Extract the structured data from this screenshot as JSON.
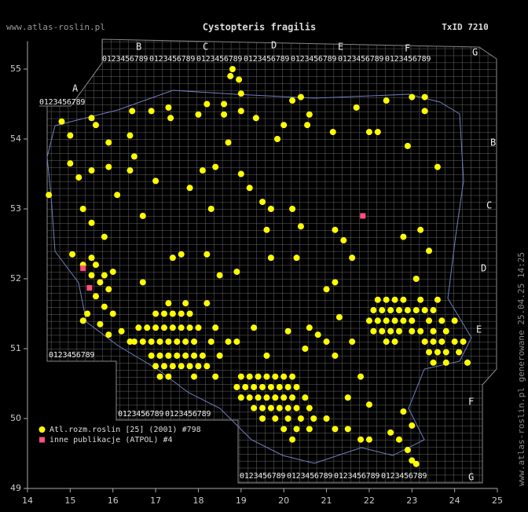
{
  "header": {
    "site": "www.atlas-roslin.pl",
    "title": "Cystopteris fragilis",
    "taxon": "TxID 7210"
  },
  "footer": "www.atlas-roslin.pl generowane 25.04.25 14:25",
  "atpol": {
    "top": [
      "A",
      "B",
      "C",
      "D",
      "E",
      "F",
      "G"
    ],
    "right": [
      "B",
      "C",
      "D",
      "E",
      "F",
      "G"
    ],
    "digits": "0123456789"
  },
  "chart_data": {
    "type": "scatter",
    "xlim": [
      14,
      25
    ],
    "ylim": [
      49,
      55.4
    ],
    "xticks": [
      14,
      15,
      16,
      17,
      18,
      19,
      20,
      21,
      22,
      23,
      24,
      25
    ],
    "yticks": [
      49,
      50,
      51,
      52,
      53,
      54,
      55
    ],
    "series": [
      {
        "name": "Atl.rozm.roslin [25] (2001) #798",
        "color": "#ffff00",
        "marker": "circle",
        "x": [
          14.8,
          15.5,
          15.6,
          15.0,
          15.9,
          16.4,
          16.45,
          16.9,
          17.3,
          17.35,
          18.0,
          18.2,
          18.6,
          18.6,
          18.75,
          18.8,
          18.95,
          19.0,
          19.0,
          19.35,
          20.2,
          20.4,
          20.6,
          20.55,
          20.0,
          19.85,
          21.15,
          21.7,
          22.0,
          22.2,
          22.4,
          23.0,
          23.3,
          23.3,
          22.9,
          23.6,
          15.9,
          16.5,
          16.4,
          17.0,
          17.8,
          18.1,
          18.4,
          18.7,
          19.0,
          19.2,
          19.5,
          19.7,
          20.2,
          15.0,
          15.2,
          14.5,
          15.5,
          16.1,
          16.7,
          18.3,
          19.6,
          20.4,
          21.2,
          21.4,
          22.8,
          23.2,
          23.4,
          23.1,
          15.3,
          15.5,
          15.8,
          17.6,
          18.2,
          18.5,
          18.9,
          19.7,
          20.3,
          21.6,
          21.0,
          21.2,
          16.7,
          17.4,
          15.05,
          15.3,
          15.5,
          15.6,
          15.8,
          16.0,
          15.5,
          15.7,
          15.9,
          15.6,
          15.8,
          16.0,
          15.4,
          15.7,
          15.9,
          16.2,
          16.4,
          15.3,
          17.0,
          17.2,
          17.4,
          17.6,
          17.8,
          16.6,
          16.8,
          17.0,
          17.2,
          17.4,
          17.6,
          17.8,
          18.0,
          18.4,
          16.5,
          16.7,
          16.9,
          17.1,
          17.3,
          17.5,
          17.7,
          17.9,
          18.3,
          18.7,
          16.9,
          17.1,
          17.3,
          17.5,
          17.7,
          17.9,
          18.1,
          18.5,
          17.0,
          17.2,
          17.4,
          17.6,
          17.8,
          18.0,
          18.2,
          17.1,
          17.3,
          17.9,
          18.4,
          17.3,
          17.7,
          18.2,
          19.0,
          19.2,
          19.4,
          19.6,
          19.8,
          20.0,
          20.2,
          18.9,
          19.1,
          19.3,
          19.5,
          19.7,
          19.9,
          20.1,
          20.3,
          19.0,
          19.2,
          19.4,
          19.6,
          19.8,
          20.0,
          20.2,
          20.5,
          19.3,
          19.5,
          19.7,
          19.9,
          20.1,
          20.3,
          20.6,
          19.5,
          19.8,
          20.1,
          20.4,
          20.7,
          21.0,
          20.0,
          20.3,
          20.6,
          21.2,
          21.5,
          20.2,
          21.8,
          22.0,
          22.5,
          22.7,
          22.9,
          23.0,
          23.1,
          22.8,
          23.0,
          22.2,
          22.4,
          22.6,
          22.8,
          23.2,
          23.6,
          22.1,
          22.3,
          22.5,
          22.7,
          22.9,
          23.1,
          23.3,
          23.5,
          22.0,
          22.2,
          22.4,
          22.6,
          22.8,
          23.0,
          23.4,
          23.7,
          24.0,
          22.1,
          22.3,
          22.5,
          22.7,
          23.0,
          23.2,
          23.5,
          23.8,
          22.4,
          22.6,
          23.3,
          23.5,
          23.7,
          24.0,
          24.2,
          23.4,
          23.6,
          23.8,
          24.1,
          23.5,
          23.8,
          24.3,
          20.6,
          20.8,
          21.0,
          20.5,
          21.2,
          20.1,
          19.3,
          18.9,
          19.6,
          21.8,
          21.5,
          22.0,
          21.3,
          21.6
        ],
        "values": [
          54.25,
          54.3,
          54.2,
          54.05,
          53.95,
          54.05,
          54.4,
          54.4,
          54.45,
          54.3,
          54.35,
          54.5,
          54.35,
          54.5,
          54.9,
          55.0,
          54.85,
          54.4,
          54.65,
          54.3,
          54.55,
          54.6,
          54.35,
          54.2,
          54.2,
          54.0,
          54.1,
          54.45,
          54.1,
          54.1,
          54.55,
          54.6,
          54.6,
          54.4,
          53.9,
          53.6,
          53.6,
          53.75,
          53.55,
          53.4,
          53.3,
          53.55,
          53.6,
          53.95,
          53.5,
          53.3,
          53.1,
          53.0,
          53.0,
          53.65,
          53.45,
          53.2,
          53.55,
          53.2,
          52.9,
          53.0,
          52.7,
          52.75,
          52.7,
          52.55,
          52.6,
          52.7,
          52.4,
          52.0,
          53.0,
          52.8,
          52.6,
          52.35,
          52.35,
          52.05,
          52.1,
          52.3,
          52.3,
          52.3,
          51.85,
          51.95,
          51.95,
          52.3,
          52.35,
          52.2,
          52.3,
          52.2,
          52.05,
          52.1,
          52.05,
          51.95,
          51.85,
          51.75,
          51.6,
          51.5,
          51.5,
          51.35,
          51.2,
          51.25,
          51.1,
          51.4,
          51.5,
          51.5,
          51.5,
          51.5,
          51.5,
          51.3,
          51.3,
          51.3,
          51.3,
          51.3,
          51.3,
          51.3,
          51.3,
          51.3,
          51.1,
          51.1,
          51.1,
          51.1,
          51.1,
          51.1,
          51.1,
          51.1,
          51.1,
          51.1,
          50.9,
          50.9,
          50.9,
          50.9,
          50.9,
          50.9,
          50.9,
          50.9,
          50.75,
          50.75,
          50.75,
          50.75,
          50.75,
          50.75,
          50.75,
          50.6,
          50.6,
          50.6,
          50.6,
          51.65,
          51.65,
          51.65,
          50.6,
          50.6,
          50.6,
          50.6,
          50.6,
          50.6,
          50.6,
          50.45,
          50.45,
          50.45,
          50.45,
          50.45,
          50.45,
          50.45,
          50.45,
          50.3,
          50.3,
          50.3,
          50.3,
          50.3,
          50.3,
          50.3,
          50.3,
          50.15,
          50.15,
          50.15,
          50.15,
          50.15,
          50.15,
          50.15,
          50.0,
          50.0,
          50.0,
          50.0,
          50.0,
          50.0,
          49.85,
          49.85,
          49.85,
          49.85,
          49.85,
          49.7,
          49.7,
          49.7,
          49.8,
          49.7,
          49.55,
          49.4,
          49.35,
          50.1,
          49.9,
          51.7,
          51.7,
          51.7,
          51.7,
          51.7,
          51.7,
          51.55,
          51.55,
          51.55,
          51.55,
          51.55,
          51.55,
          51.55,
          51.55,
          51.4,
          51.4,
          51.4,
          51.4,
          51.4,
          51.4,
          51.4,
          51.4,
          51.4,
          51.25,
          51.25,
          51.25,
          51.25,
          51.25,
          51.25,
          51.25,
          51.25,
          51.1,
          51.1,
          51.1,
          51.1,
          51.1,
          51.1,
          51.1,
          50.95,
          50.95,
          50.95,
          50.95,
          50.8,
          50.8,
          50.8,
          51.3,
          51.2,
          51.1,
          51.0,
          50.9,
          51.25,
          51.3,
          51.1,
          50.9,
          50.6,
          50.3,
          50.2,
          51.45,
          51.1
        ]
      },
      {
        "name": "inne publikacje (ATPOL) #4",
        "color": "#ff4f7f",
        "marker": "square",
        "x": [
          15.3,
          15.45,
          21.85
        ],
        "values": [
          52.15,
          51.87,
          52.9
        ]
      }
    ]
  }
}
